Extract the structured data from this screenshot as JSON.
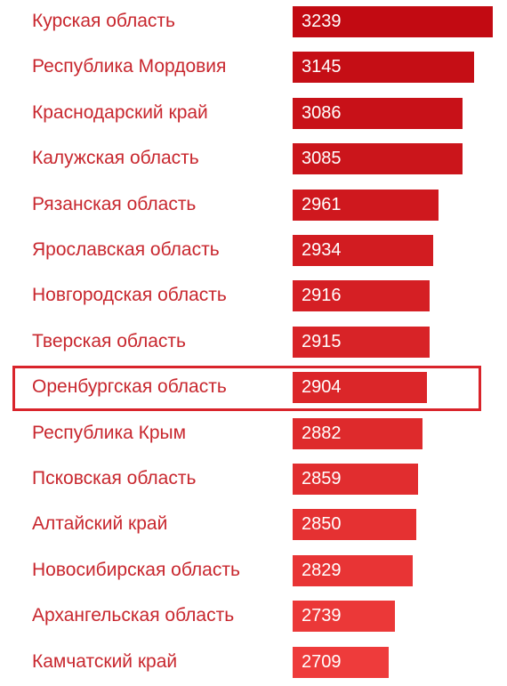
{
  "chart_data": {
    "type": "bar",
    "orientation": "horizontal",
    "categories": [
      "Курская область",
      "Республика Мордовия",
      "Краснодарский край",
      "Калужская область",
      "Рязанская область",
      "Ярославская область",
      "Новгородская область",
      "Тверская область",
      "Оренбургская область",
      "Республика Крым",
      "Псковская область",
      "Алтайский край",
      "Новосибирская область",
      "Архангельская область",
      "Камчатский край"
    ],
    "values": [
      3239,
      3145,
      3086,
      3085,
      2961,
      2934,
      2916,
      2915,
      2904,
      2882,
      2859,
      2850,
      2829,
      2739,
      2709
    ],
    "value_labels": [
      "3239",
      "3145",
      "3086",
      "3085",
      "2961",
      "2934",
      "2916",
      "2915",
      "2904",
      "2882",
      "2859",
      "2850",
      "2829",
      "2739",
      "2709"
    ],
    "highlighted_category": "Оренбургская область",
    "colors": {
      "bar_top": "#c20a12",
      "bar_bottom": "#ee3b3b",
      "label": "#c8272e",
      "value_text": "#ffffff",
      "highlight_border": "#d9242b"
    }
  }
}
